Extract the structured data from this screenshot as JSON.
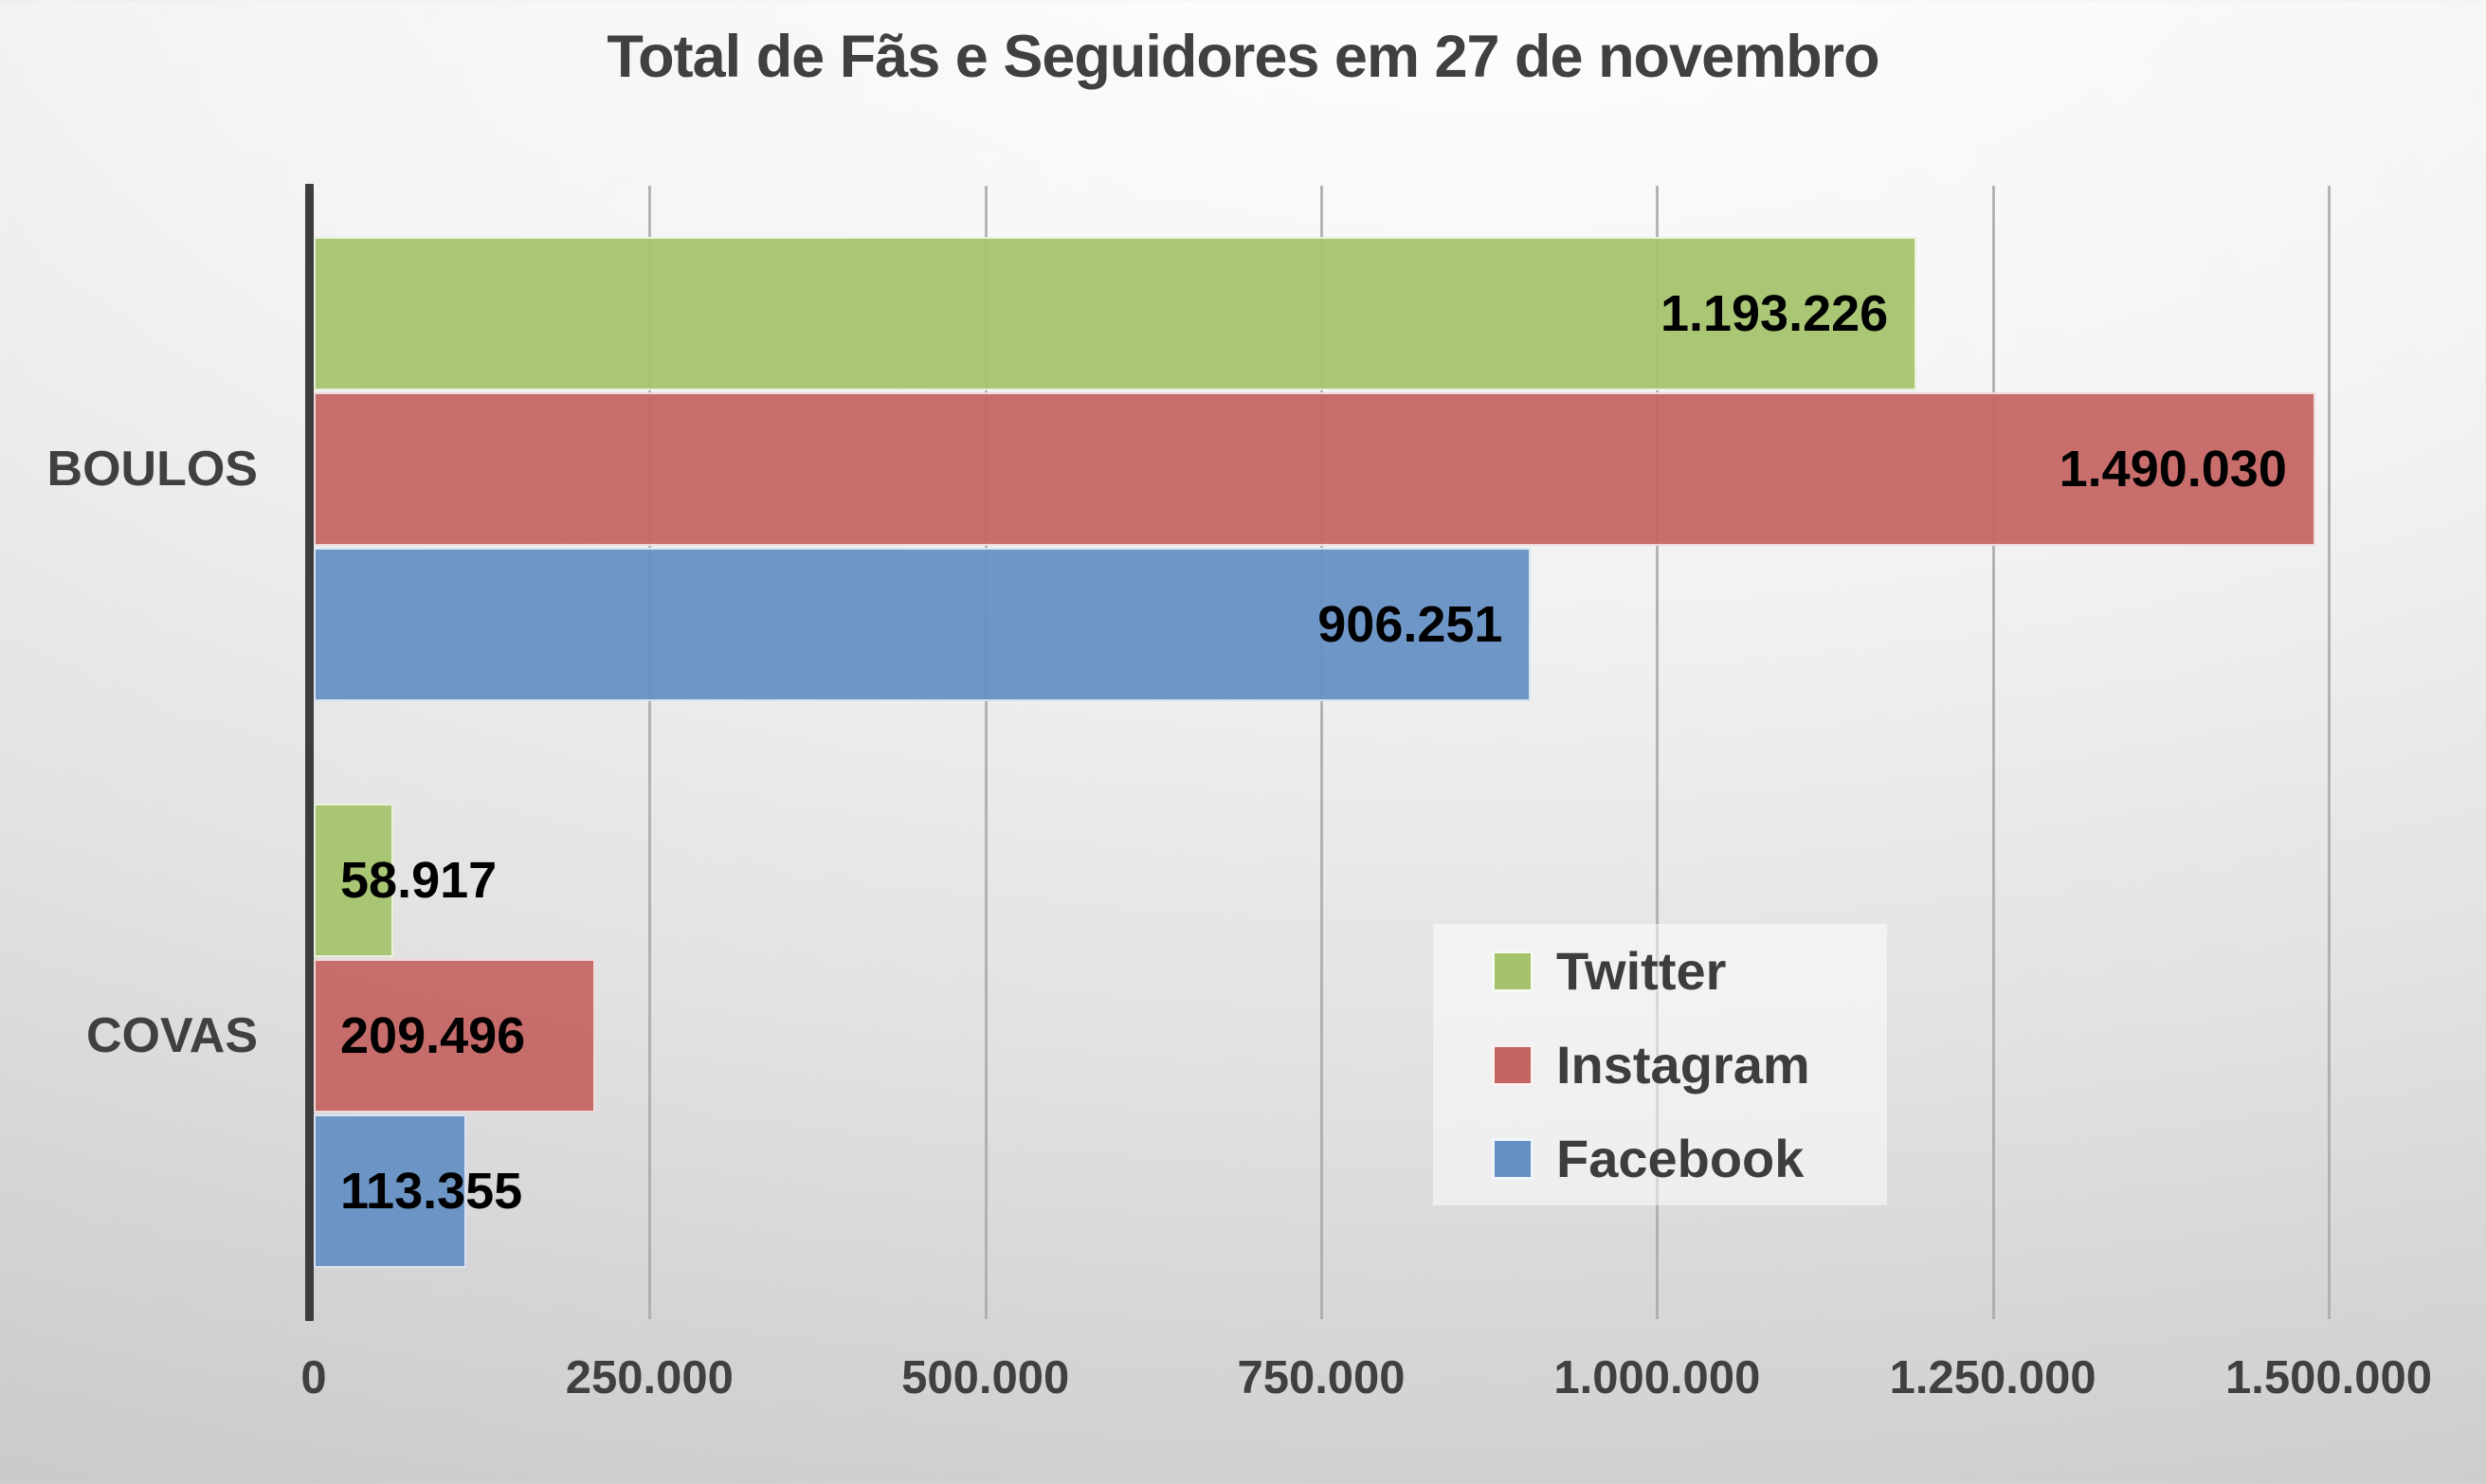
{
  "title": "Total de Fãs e Seguidores em 27 de novembro",
  "colors": {
    "twitter_green": "#A5C36D",
    "instagram_red": "#C56563",
    "facebook_blue": "#6590C5",
    "axis_line": "#3D3D3D",
    "gridline": "#A8A8A8",
    "heading_text": "#404040",
    "value_label_text": "#000000"
  },
  "chart_data": {
    "type": "bar",
    "orientation": "horizontal",
    "title": "Total de Fãs e Seguidores em 27 de novembro",
    "categories": [
      "BOULOS",
      "COVAS"
    ],
    "series": [
      {
        "name": "Twitter",
        "color": "#A5C36D",
        "values": [
          1193226,
          58917
        ],
        "value_labels": [
          "1.193.226",
          "58.917"
        ]
      },
      {
        "name": "Instagram",
        "color": "#C56563",
        "values": [
          1490030,
          209496
        ],
        "value_labels": [
          "1.490.030",
          "209.496"
        ]
      },
      {
        "name": "Facebook",
        "color": "#6590C5",
        "values": [
          906251,
          113355
        ],
        "value_labels": [
          "906.251",
          "113.355"
        ]
      }
    ],
    "xlim": [
      0,
      1500000
    ],
    "x_tick_interval": 250000,
    "x_tick_labels": [
      "0",
      "250.000",
      "500.000",
      "750.000",
      "1.000.000",
      "1.250.000",
      "1.500.000"
    ],
    "grid": "vertical-gridlines-on",
    "legend_position": "inside-lower-right",
    "legend_entries": [
      "Twitter",
      "Instagram",
      "Facebook"
    ]
  }
}
